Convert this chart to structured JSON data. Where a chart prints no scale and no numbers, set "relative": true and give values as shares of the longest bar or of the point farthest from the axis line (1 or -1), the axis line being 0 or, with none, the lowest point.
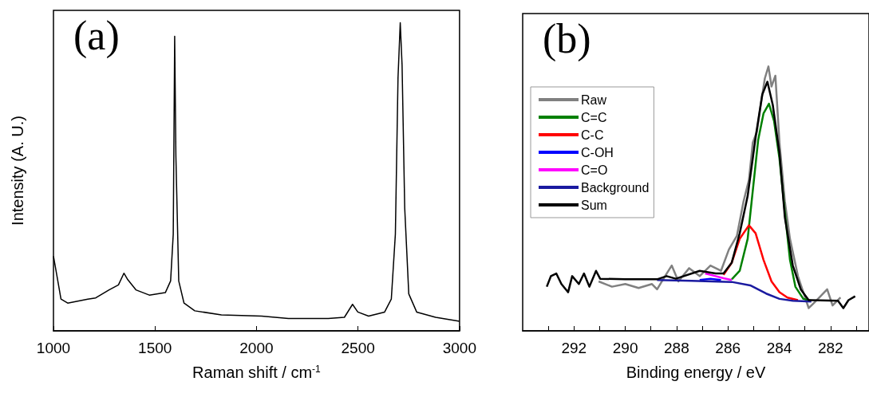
{
  "chart_data": [
    {
      "type": "line",
      "xlabel": "Raman shift / cm$^{-1}$",
      "ylabel": "Intensity (A. U.)",
      "annotations": [
        "(a)"
      ],
      "relative": true,
      "tick_labels": "x",
      "marker": "none",
      "color": "#000000",
      "xlim": [
        1000,
        3000
      ],
      "xticks": [
        1000,
        1500,
        2000,
        2500,
        3000
      ],
      "x": [
        1000,
        1017,
        1037,
        1070,
        1169,
        1208,
        1274,
        1320,
        1347,
        1366,
        1406,
        1472,
        1551,
        1577,
        1590,
        1597,
        1603,
        1617,
        1643,
        1696,
        1827,
        2025,
        2157,
        2354,
        2433,
        2473,
        2499,
        2552,
        2631,
        2664,
        2684,
        2697,
        2708,
        2717,
        2730,
        2750,
        2789,
        2882,
        3000
      ],
      "values": [
        0.242,
        0.179,
        0.103,
        0.09,
        0.103,
        0.107,
        0.133,
        0.149,
        0.187,
        0.166,
        0.133,
        0.116,
        0.124,
        0.162,
        0.314,
        0.956,
        0.568,
        0.162,
        0.09,
        0.065,
        0.052,
        0.048,
        0.04,
        0.04,
        0.044,
        0.086,
        0.061,
        0.048,
        0.061,
        0.103,
        0.314,
        0.821,
        1.0,
        0.863,
        0.399,
        0.12,
        0.061,
        0.044,
        0.031
      ]
    },
    {
      "type": "line",
      "xlabel": "Binding energy / eV",
      "annotations": [
        "(b)"
      ],
      "relative": true,
      "tick_labels": "x",
      "marker": "none",
      "legend": "top left",
      "xlim": [
        294,
        280.5
      ],
      "xticks": [
        {
          "value": 293,
          "label": null
        },
        292,
        {
          "value": 291,
          "label": null
        },
        290,
        {
          "value": 289,
          "label": null
        },
        288,
        {
          "value": 287,
          "label": null
        },
        286,
        {
          "value": 285,
          "label": null
        },
        284,
        {
          "value": 283,
          "label": null
        },
        282,
        {
          "value": 281,
          "label": null
        }
      ],
      "series": [
        {
          "name": "Raw",
          "color": "#808080",
          "x": [
            291.04,
            290.52,
            290.0,
            289.48,
            288.96,
            288.76,
            288.45,
            288.19,
            287.93,
            287.51,
            287.1,
            286.68,
            286.27,
            285.96,
            285.65,
            285.39,
            285.18,
            285.03,
            284.87,
            284.72,
            284.56,
            284.42,
            284.3,
            284.15,
            283.99,
            283.78,
            283.58,
            283.27,
            283.06,
            282.85,
            282.54,
            282.13,
            281.92,
            281.61
          ],
          "values": [
            0.187,
            0.167,
            0.177,
            0.162,
            0.177,
            0.157,
            0.207,
            0.247,
            0.187,
            0.237,
            0.207,
            0.247,
            0.227,
            0.308,
            0.359,
            0.49,
            0.571,
            0.712,
            0.753,
            0.854,
            0.955,
            1.0,
            0.924,
            0.965,
            0.712,
            0.49,
            0.348,
            0.207,
            0.146,
            0.086,
            0.116,
            0.157,
            0.096,
            0.126
          ]
        },
        {
          "name": "C=C",
          "color": "#008000",
          "x": [
            285.85,
            285.54,
            285.23,
            285.03,
            284.82,
            284.61,
            284.4,
            284.2,
            283.99,
            283.78,
            283.58,
            283.37,
            283.06,
            282.75
          ],
          "values": [
            0.195,
            0.227,
            0.348,
            0.53,
            0.722,
            0.823,
            0.859,
            0.793,
            0.652,
            0.449,
            0.268,
            0.167,
            0.121,
            0.114
          ]
        },
        {
          "name": "C-C",
          "color": "#ff0000",
          "x": [
            286.17,
            285.85,
            285.54,
            285.18,
            284.92,
            284.61,
            284.3,
            283.99,
            283.68,
            283.27
          ],
          "values": [
            0.212,
            0.258,
            0.348,
            0.399,
            0.369,
            0.268,
            0.187,
            0.146,
            0.126,
            0.116
          ]
        },
        {
          "name": "C-OH",
          "color": "#0000ff",
          "x": [
            287.1,
            286.68,
            286.27
          ],
          "values": [
            0.192,
            0.197,
            0.192
          ]
        },
        {
          "name": "C=O",
          "color": "#ff00ff",
          "x": [
            286.89,
            286.48,
            286.17,
            285.85
          ],
          "values": [
            0.217,
            0.207,
            0.199,
            0.192
          ]
        },
        {
          "name": "Background",
          "color": "#1a1aa0",
          "x": [
            288.76,
            287.41,
            285.85,
            285.13,
            284.51,
            283.99,
            283.47,
            282.75
          ],
          "values": [
            0.192,
            0.189,
            0.185,
            0.172,
            0.141,
            0.121,
            0.114,
            0.111
          ]
        },
        {
          "name": "Sum",
          "color": "#000000",
          "x": [
            293.06,
            292.9,
            292.69,
            292.49,
            292.23,
            292.07,
            291.81,
            291.61,
            291.4,
            291.14,
            290.98,
            290.0,
            288.76,
            288.39,
            288.03,
            287.1,
            286.48,
            286.17,
            285.85,
            285.54,
            285.23,
            284.92,
            284.66,
            284.46,
            284.25,
            283.99,
            283.78,
            283.47,
            283.16,
            282.85,
            281.71,
            281.5,
            281.3,
            281.04
          ],
          "values": [
            0.167,
            0.207,
            0.217,
            0.177,
            0.146,
            0.207,
            0.177,
            0.217,
            0.167,
            0.227,
            0.197,
            0.195,
            0.195,
            0.207,
            0.197,
            0.227,
            0.217,
            0.217,
            0.258,
            0.369,
            0.51,
            0.732,
            0.894,
            0.942,
            0.854,
            0.672,
            0.429,
            0.247,
            0.157,
            0.116,
            0.114,
            0.086,
            0.116,
            0.131
          ]
        }
      ]
    }
  ]
}
